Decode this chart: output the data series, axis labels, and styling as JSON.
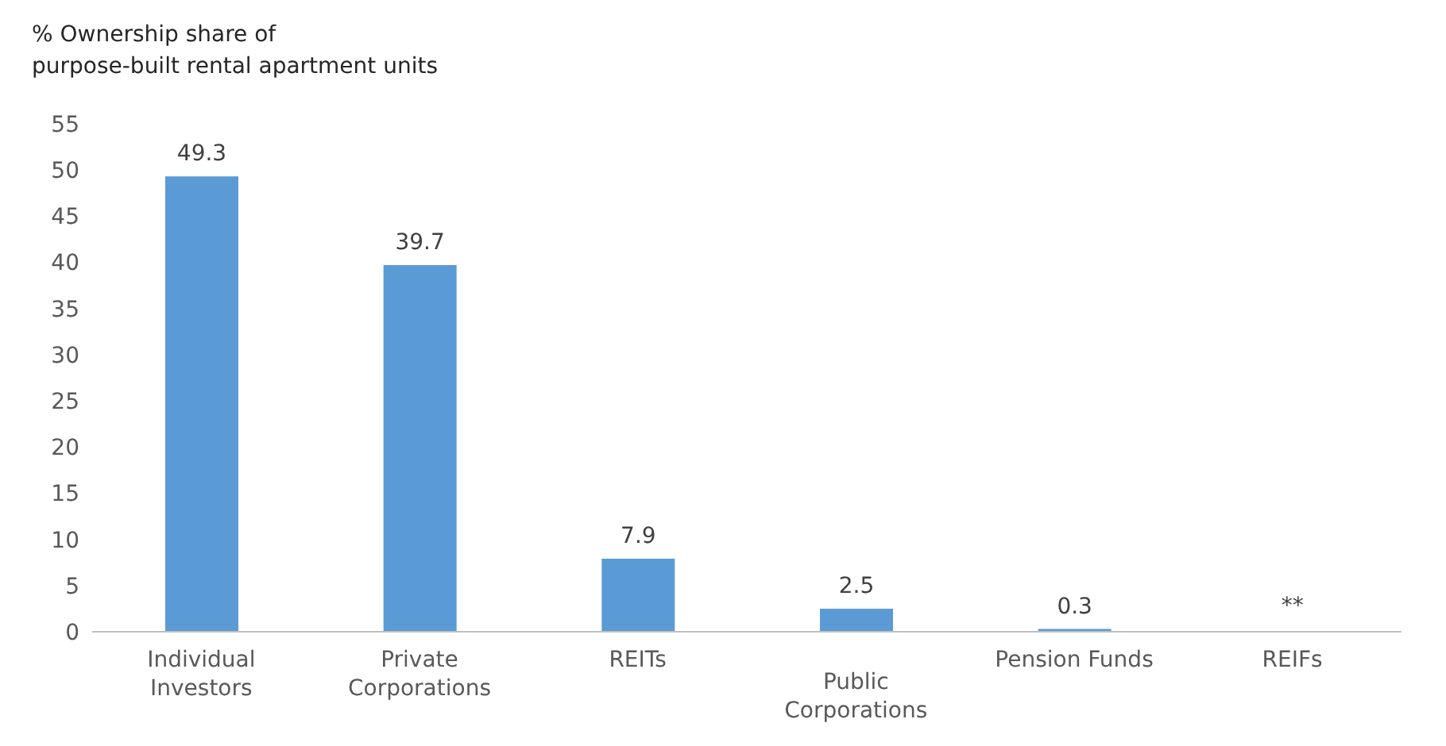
{
  "chart_data": {
    "type": "bar",
    "ylabel": "% Ownership share of\npurpose-built rental apartment units",
    "categories": [
      "Individual\nInvestors",
      "Private\nCorporations",
      "REITs",
      "Public\nCorporations",
      "Pension Funds",
      "REIFs"
    ],
    "values": [
      49.3,
      39.7,
      7.9,
      2.5,
      0.3,
      null
    ],
    "value_labels": [
      "49.3",
      "39.7",
      "7.9",
      "2.5",
      "0.3",
      "**"
    ],
    "color": "#5b9bd5",
    "ylim": [
      0,
      55
    ],
    "yticks": [
      0,
      5,
      10,
      15,
      20,
      25,
      30,
      35,
      40,
      45,
      50,
      55
    ],
    "grid": false,
    "legend": false
  }
}
